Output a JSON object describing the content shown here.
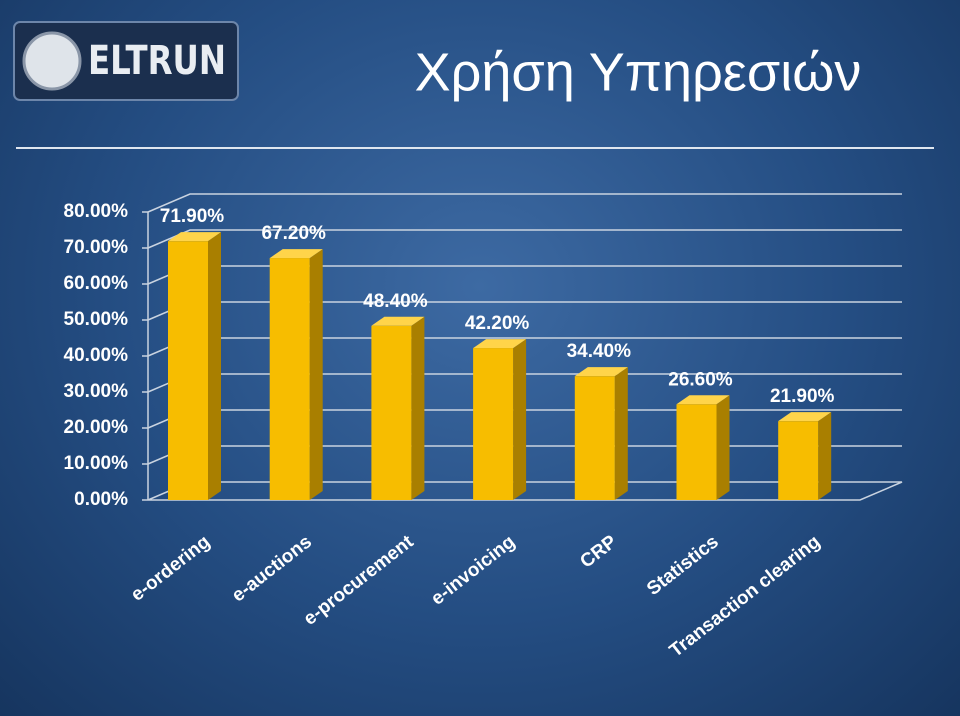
{
  "logo": "ELTRUN",
  "chart_data": {
    "type": "bar3d",
    "title": "Χρήση Υπηρεσιών",
    "categories": [
      "e-ordering",
      "e-auctions",
      "e-procurement",
      "e-invoicing",
      "CRP",
      "Statistics",
      "Transaction clearing"
    ],
    "values": [
      71.9,
      67.2,
      48.4,
      42.2,
      34.4,
      26.6,
      21.9
    ],
    "value_labels": [
      "71.90%",
      "67.20%",
      "48.40%",
      "42.20%",
      "34.40%",
      "26.60%",
      "21.90%"
    ],
    "color": "#f7bd00",
    "ylim": [
      0,
      80
    ],
    "yticks": [
      {
        "value": 0,
        "label": "0.00%"
      },
      {
        "value": 10,
        "label": "10.00%"
      },
      {
        "value": 20,
        "label": "20.00%"
      },
      {
        "value": 30,
        "label": "30.00%"
      },
      {
        "value": 40,
        "label": "40.00%"
      },
      {
        "value": 50,
        "label": "50.00%"
      },
      {
        "value": 60,
        "label": "60.00%"
      },
      {
        "value": 70,
        "label": "70.00%"
      },
      {
        "value": 80,
        "label": "80.00%"
      }
    ],
    "grid": true
  }
}
